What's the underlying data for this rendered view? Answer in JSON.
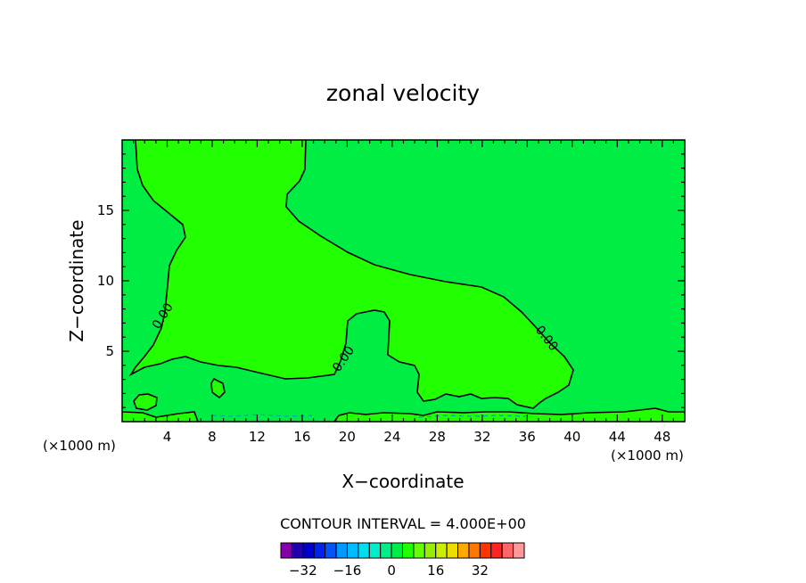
{
  "chart_data": {
    "type": "contour",
    "title": "zonal velocity",
    "xlabel": "X−coordinate",
    "ylabel": "Z−coordinate",
    "x_unit_left": "(×1000 m)",
    "x_unit_right": "(×1000 m)",
    "xlim": [
      0,
      50
    ],
    "ylim": [
      0,
      20
    ],
    "xticks": [
      4,
      8,
      12,
      16,
      20,
      24,
      28,
      32,
      36,
      40,
      44,
      48
    ],
    "yticks": [
      5,
      10,
      15
    ],
    "contour_labels": [
      "0.00",
      "0.00",
      "0.00"
    ],
    "contour_interval_text": "CONTOUR INTERVAL = 4.000E+00",
    "background_fill": "#00ee44",
    "positive_fill": "#22ff00",
    "colorbar": {
      "colors": [
        "#8800aa",
        "#2200aa",
        "#0000cc",
        "#0022ee",
        "#0055ff",
        "#0099ff",
        "#00bbff",
        "#00ddee",
        "#00eecc",
        "#00ee88",
        "#00ee44",
        "#22ff00",
        "#66ff00",
        "#99ee00",
        "#ccee00",
        "#eedd00",
        "#ffaa00",
        "#ff7700",
        "#ff3300",
        "#ff2222",
        "#ff6666",
        "#ff9999"
      ],
      "tick_values": [
        -32,
        -16,
        0,
        16,
        32
      ],
      "tick_labels": [
        "−32",
        "−16",
        "0",
        "16",
        "32"
      ]
    }
  }
}
